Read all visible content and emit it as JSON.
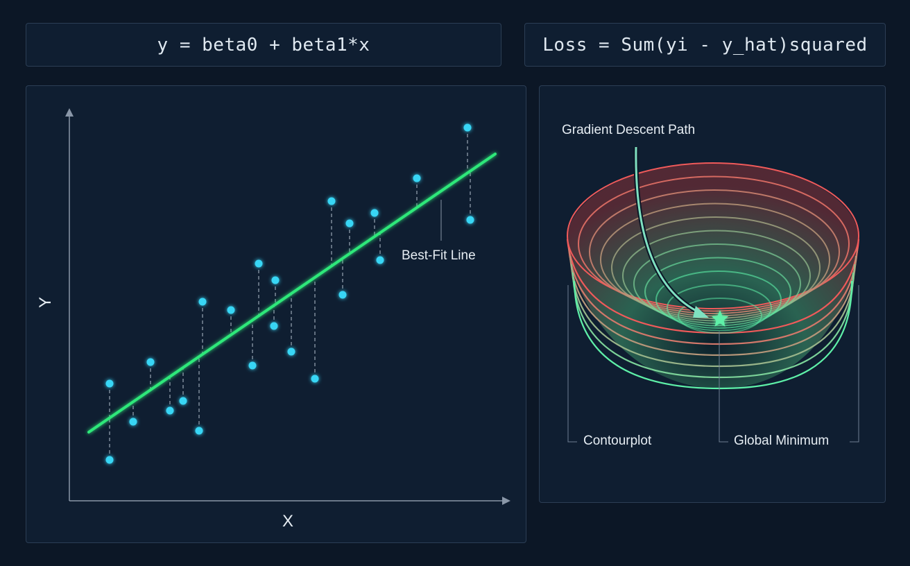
{
  "formulas": {
    "model": "y = beta0 + beta1*x",
    "loss": "Loss = Sum(yi - y_hat)squared"
  },
  "regression_panel": {
    "x_axis_label": "X",
    "y_axis_label": "Y",
    "line_label": "Best-Fit Line"
  },
  "loss_panel": {
    "path_label": "Gradient Descent Path",
    "contour_label": "Contourplot",
    "minimum_label": "Global Minimum"
  },
  "colors": {
    "background": "#0c1726",
    "panel": "#0f1e31",
    "points": "#38d6f5",
    "fit_line": "#2ee87a",
    "bowl_high": "#f05a5a",
    "bowl_low": "#5ef0a8"
  },
  "icons": {
    "minimum_marker": "star-icon"
  }
}
